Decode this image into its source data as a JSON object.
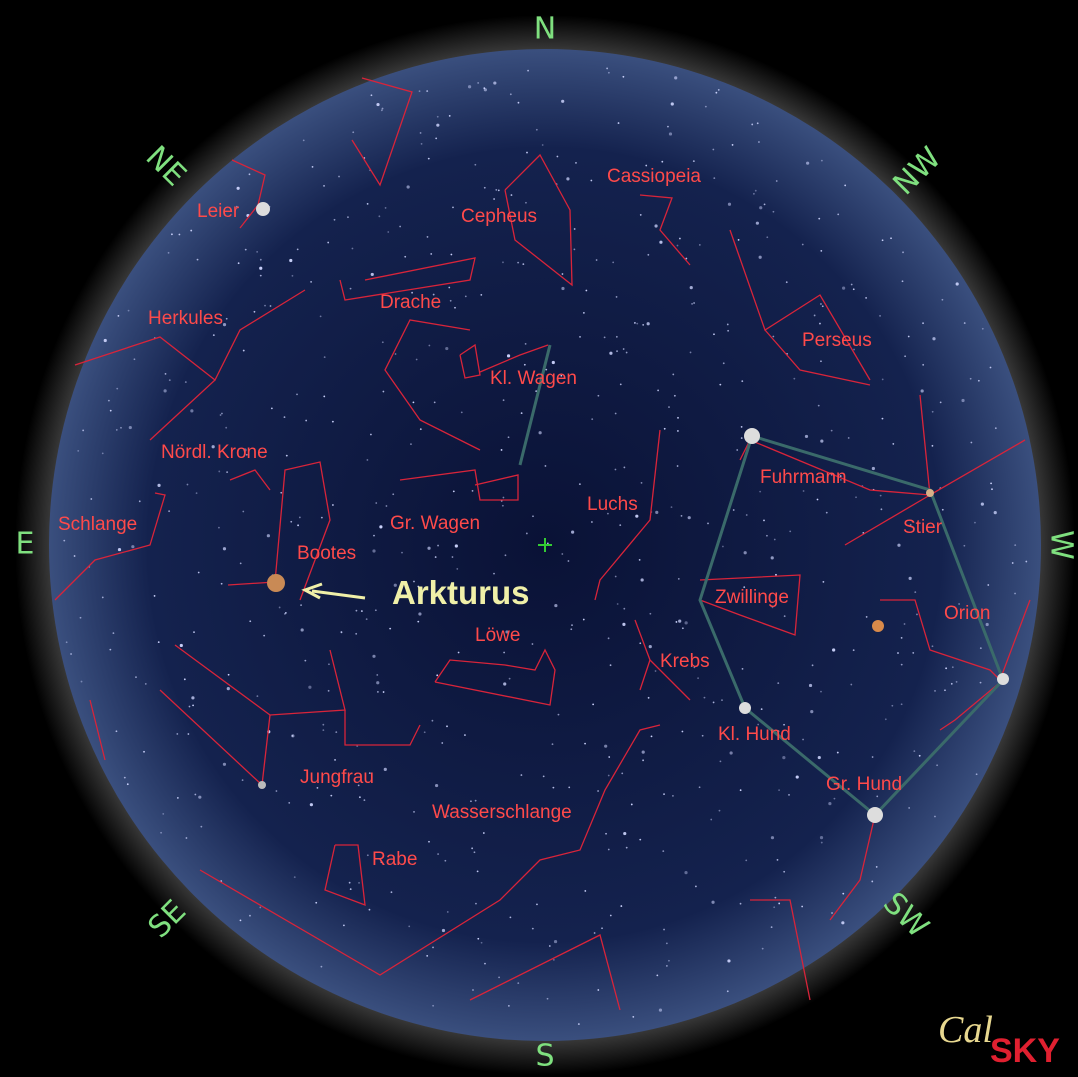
{
  "compass": [
    "N",
    "NE",
    "E",
    "SE",
    "S",
    "SW",
    "W",
    "NW"
  ],
  "constellations": [
    "Leier",
    "Cepheus",
    "Cassiopeia",
    "Herkules",
    "Drache",
    "Kl. Wagen",
    "Perseus",
    "Nördl. Krone",
    "Fuhrmann",
    "Luchs",
    "Schlange",
    "Gr. Wagen",
    "Stier",
    "Bootes",
    "Zwillinge",
    "Orion",
    "Löwe",
    "Krebs",
    "Kl. Hund",
    "Jungfrau",
    "Gr. Hund",
    "Wasserschlange",
    "Rabe"
  ],
  "highlight": "Arkturus",
  "logo": {
    "cal": "Cal",
    "sky": "SKY"
  }
}
